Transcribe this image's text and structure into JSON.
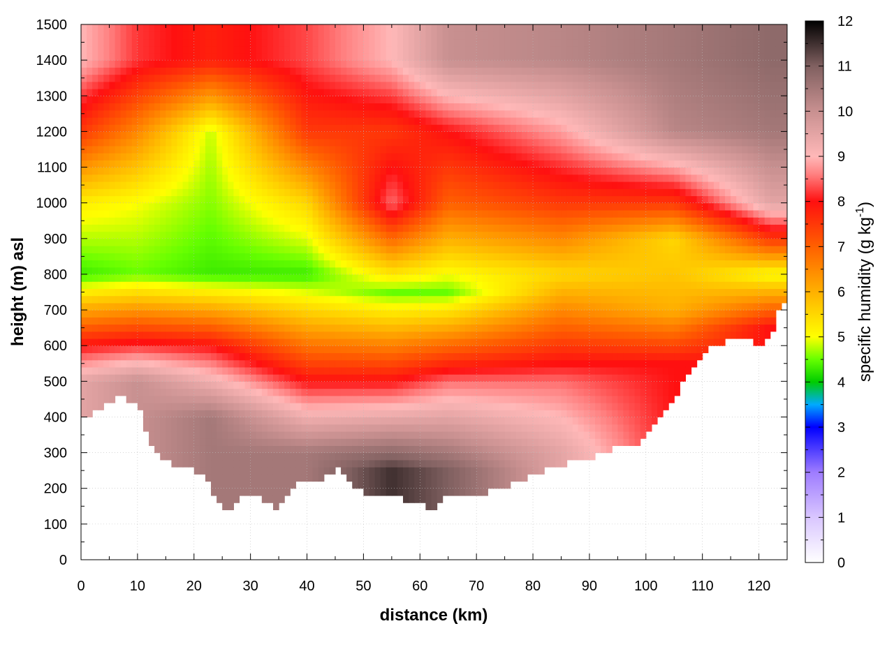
{
  "chart_data": {
    "type": "heatmap",
    "title": "",
    "xlabel": "distance (km)",
    "ylabel": "height (m) asl",
    "colorbar_label": "specific humidity (g kg-1)",
    "colorbar_label_parts": {
      "base": "specific humidity (g kg",
      "superscript": "-1",
      "close": ")"
    },
    "xlim": [
      0,
      125
    ],
    "ylim": [
      0,
      1500
    ],
    "zlim": [
      0,
      12
    ],
    "xticks": [
      "0",
      "10",
      "20",
      "30",
      "40",
      "50",
      "60",
      "70",
      "80",
      "90",
      "100",
      "110",
      "120"
    ],
    "yticks": [
      "0",
      "100",
      "200",
      "300",
      "400",
      "500",
      "600",
      "700",
      "800",
      "900",
      "1000",
      "1100",
      "1200",
      "1300",
      "1400",
      "1500"
    ],
    "zticks": [
      "0",
      "1",
      "2",
      "3",
      "4",
      "5",
      "6",
      "7",
      "8",
      "9",
      "10",
      "11",
      "12"
    ],
    "grid": true,
    "colormap": [
      {
        "v": 0,
        "color": "#ffffff"
      },
      {
        "v": 1,
        "color": "#d9c6ff"
      },
      {
        "v": 2,
        "color": "#9e7cff"
      },
      {
        "v": 3,
        "color": "#0000ff"
      },
      {
        "v": 3.5,
        "color": "#00aaff"
      },
      {
        "v": 4,
        "color": "#00cc00"
      },
      {
        "v": 4.5,
        "color": "#66ff00"
      },
      {
        "v": 5,
        "color": "#ffff00"
      },
      {
        "v": 6,
        "color": "#ffb000"
      },
      {
        "v": 7,
        "color": "#ff6000"
      },
      {
        "v": 8,
        "color": "#ff1010"
      },
      {
        "v": 8.6,
        "color": "#ff8080"
      },
      {
        "v": 9,
        "color": "#ffb8b8"
      },
      {
        "v": 10,
        "color": "#c89090"
      },
      {
        "v": 11,
        "color": "#806060"
      },
      {
        "v": 12,
        "color": "#000000"
      }
    ],
    "surface_height": [
      {
        "x": 0,
        "y": 400
      },
      {
        "x": 3,
        "y": 420
      },
      {
        "x": 7,
        "y": 460
      },
      {
        "x": 10,
        "y": 440
      },
      {
        "x": 12,
        "y": 330
      },
      {
        "x": 15,
        "y": 280
      },
      {
        "x": 18,
        "y": 260
      },
      {
        "x": 22,
        "y": 240
      },
      {
        "x": 24,
        "y": 160
      },
      {
        "x": 26,
        "y": 140
      },
      {
        "x": 29,
        "y": 190
      },
      {
        "x": 32,
        "y": 170
      },
      {
        "x": 35,
        "y": 145
      },
      {
        "x": 38,
        "y": 220
      },
      {
        "x": 42,
        "y": 210
      },
      {
        "x": 46,
        "y": 265
      },
      {
        "x": 48,
        "y": 200
      },
      {
        "x": 52,
        "y": 180
      },
      {
        "x": 56,
        "y": 175
      },
      {
        "x": 60,
        "y": 160
      },
      {
        "x": 62,
        "y": 140
      },
      {
        "x": 65,
        "y": 180
      },
      {
        "x": 70,
        "y": 185
      },
      {
        "x": 75,
        "y": 200
      },
      {
        "x": 80,
        "y": 240
      },
      {
        "x": 85,
        "y": 265
      },
      {
        "x": 90,
        "y": 285
      },
      {
        "x": 95,
        "y": 320
      },
      {
        "x": 98,
        "y": 320
      },
      {
        "x": 102,
        "y": 400
      },
      {
        "x": 106,
        "y": 480
      },
      {
        "x": 110,
        "y": 580
      },
      {
        "x": 114,
        "y": 610
      },
      {
        "x": 118,
        "y": 620
      },
      {
        "x": 120,
        "y": 595
      },
      {
        "x": 122,
        "y": 620
      },
      {
        "x": 124,
        "y": 720
      }
    ],
    "profiles": [
      {
        "x": 0,
        "values_by_height": {
          "500": 9.5,
          "600": 8.0,
          "800": 4.3,
          "1000": 5.2,
          "1200": 7.5,
          "1400": 9.0
        }
      },
      {
        "x": 10,
        "values_by_height": {
          "500": 10.0,
          "600": 8.2,
          "800": 4.5,
          "1000": 5.0,
          "1200": 6.5,
          "1400": 8.2
        }
      },
      {
        "x": 23,
        "values_by_height": {
          "400": 10.5,
          "600": 8.0,
          "800": 4.3,
          "1000": 4.6,
          "1200": 4.8,
          "1400": 7.8
        }
      },
      {
        "x": 40,
        "values_by_height": {
          "300": 10.5,
          "500": 8.0,
          "800": 4.3,
          "1000": 5.5,
          "1200": 7.5,
          "1400": 8.3
        }
      },
      {
        "x": 55,
        "values_by_height": {
          "250": 11.5,
          "500": 8.0,
          "750": 4.5,
          "1000": 8.5,
          "1200": 7.5,
          "1400": 9.0
        }
      },
      {
        "x": 65,
        "values_by_height": {
          "250": 11.0,
          "500": 8.5,
          "750": 4.5,
          "1000": 7.0,
          "1200": 8.0,
          "1400": 10.0
        }
      },
      {
        "x": 85,
        "values_by_height": {
          "300": 9.5,
          "500": 8.5,
          "800": 5.5,
          "1000": 7.5,
          "1200": 8.8,
          "1400": 10.2
        }
      },
      {
        "x": 105,
        "values_by_height": {
          "550": 8.0,
          "700": 6.0,
          "900": 5.5,
          "1000": 7.5,
          "1200": 10.2,
          "1400": 10.5
        }
      },
      {
        "x": 122,
        "values_by_height": {
          "650": 8.0,
          "800": 5.0,
          "900": 7.5,
          "1000": 9.5,
          "1200": 10.5,
          "1400": 10.8
        }
      }
    ]
  }
}
